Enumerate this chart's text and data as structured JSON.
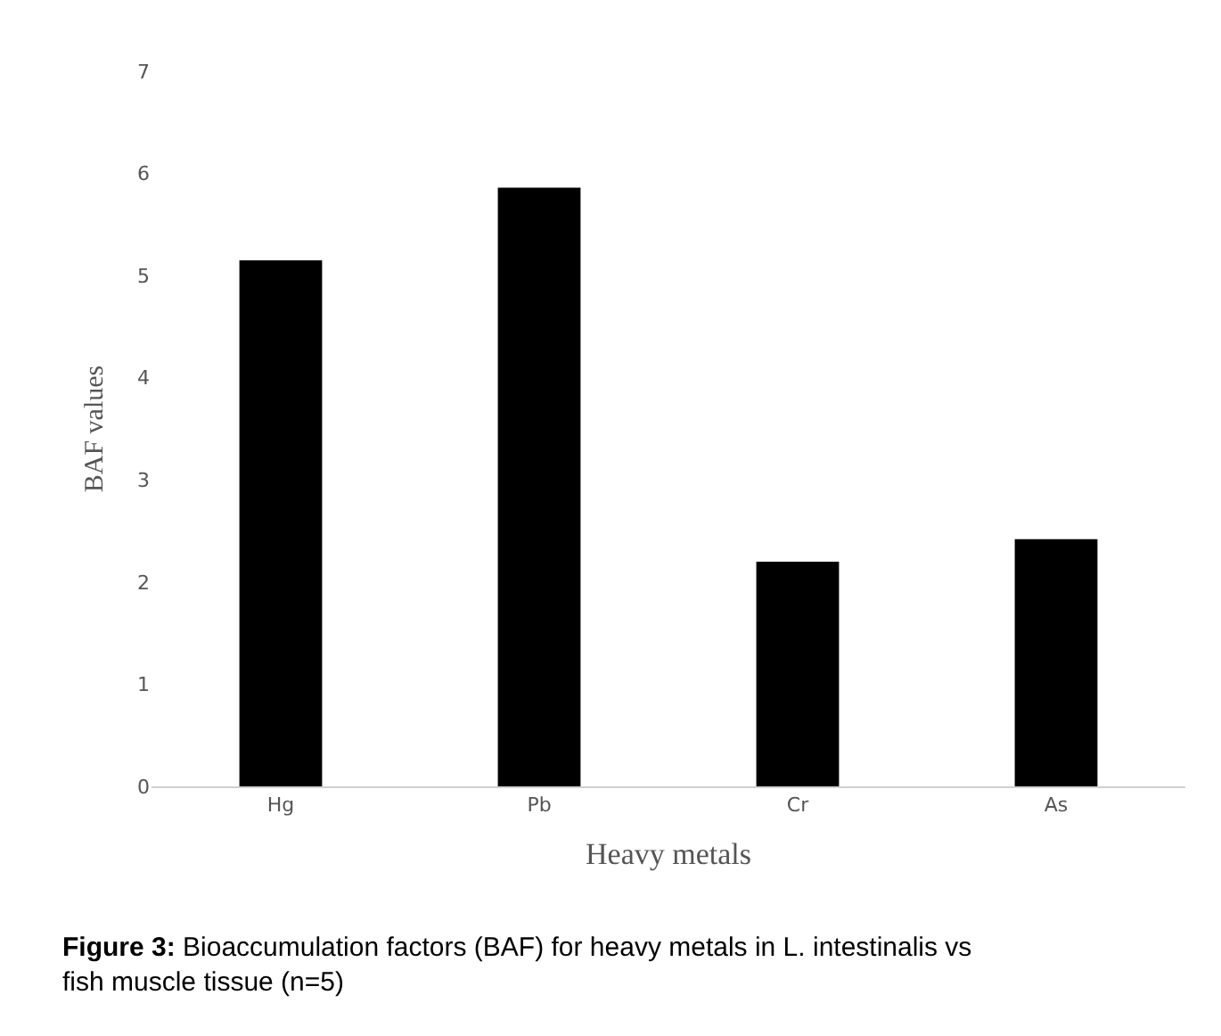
{
  "chart_data": {
    "type": "bar",
    "categories": [
      "Hg",
      "Pb",
      "Cr",
      "As"
    ],
    "values": [
      5.15,
      5.86,
      2.2,
      2.42
    ],
    "color": "#000000",
    "xlabel": "Heavy metals",
    "ylabel": "BAF values",
    "ylim": [
      0,
      7
    ],
    "yticks": [
      0,
      1,
      2,
      3,
      4,
      5,
      6,
      7
    ],
    "annotations": [
      "Figure 3: Bioaccumulation factors (BAF) for heavy metals in L. intestinalis vs fish muscle tissue (n=5)"
    ]
  }
}
